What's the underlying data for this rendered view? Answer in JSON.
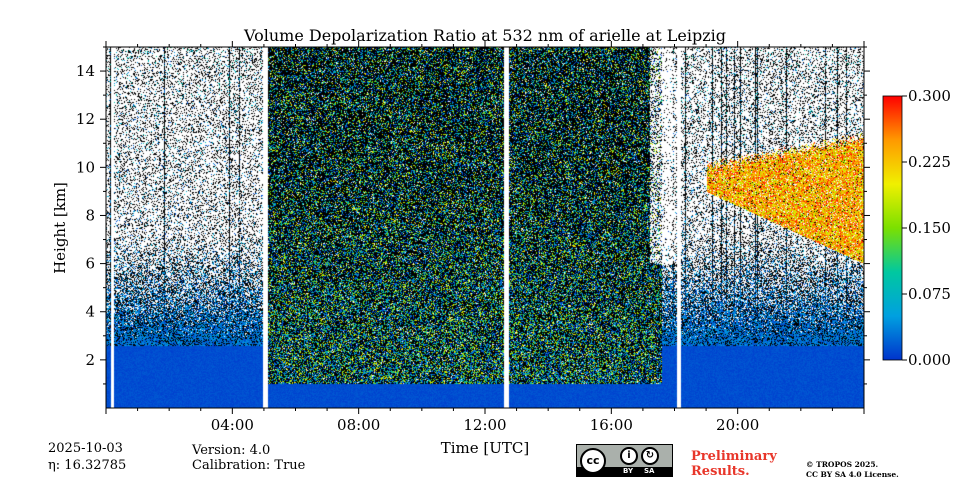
{
  "chart_data": {
    "type": "heatmap",
    "title": "Volume Depolarization Ratio at 532 nm of arielle at Leipzig",
    "xlabel": "Time [UTC]",
    "ylabel": "Height [km]",
    "xlim_hours": [
      0,
      24
    ],
    "ylim_km": [
      0,
      15
    ],
    "x_ticks": [
      {
        "hour": 4,
        "label": "04:00"
      },
      {
        "hour": 8,
        "label": "08:00"
      },
      {
        "hour": 12,
        "label": "12:00"
      },
      {
        "hour": 16,
        "label": "16:00"
      },
      {
        "hour": 20,
        "label": "20:00"
      }
    ],
    "y_ticks": [
      {
        "km": 2,
        "label": "2"
      },
      {
        "km": 4,
        "label": "4"
      },
      {
        "km": 6,
        "label": "6"
      },
      {
        "km": 8,
        "label": "8"
      },
      {
        "km": 10,
        "label": "10"
      },
      {
        "km": 12,
        "label": "12"
      },
      {
        "km": 14,
        "label": "14"
      }
    ],
    "colorbar": {
      "min": 0.0,
      "max": 0.3,
      "ticks": [
        {
          "value": 0.0,
          "label": "0.000"
        },
        {
          "value": 0.075,
          "label": "0.075"
        },
        {
          "value": 0.15,
          "label": "0.150"
        },
        {
          "value": 0.225,
          "label": "0.225"
        },
        {
          "value": 0.3,
          "label": "0.300"
        }
      ],
      "colors": [
        "#0033cc",
        "#00a0e0",
        "#00c8a0",
        "#7be000",
        "#f0f000",
        "#ff9900",
        "#ff0000"
      ]
    },
    "data_gaps_hours": [
      [
        0.15,
        0.25
      ],
      [
        4.95,
        5.1
      ],
      [
        12.6,
        12.75
      ],
      [
        18.05,
        18.2
      ]
    ],
    "cirrus_layer": {
      "start_hour": 19.0,
      "end_hour": 24.0,
      "top_km": 11.0,
      "base_km_start": 9.0,
      "base_km_end": 6.0
    },
    "noisy_region_hours": [
      5.1,
      17.6
    ]
  },
  "info": {
    "date": "2025-10-03",
    "eta_label": "η: 16.32785",
    "version": "Version: 4.0",
    "calibration": "Calibration: True"
  },
  "license": {
    "cc_text": "cc",
    "by_text": "BY",
    "sa_text": "SA",
    "preliminary_line1": "Preliminary",
    "preliminary_line2": "Results.",
    "copyright_line1": "© TROPOS 2025.",
    "copyright_line2": "CC BY SA 4.0 License."
  }
}
